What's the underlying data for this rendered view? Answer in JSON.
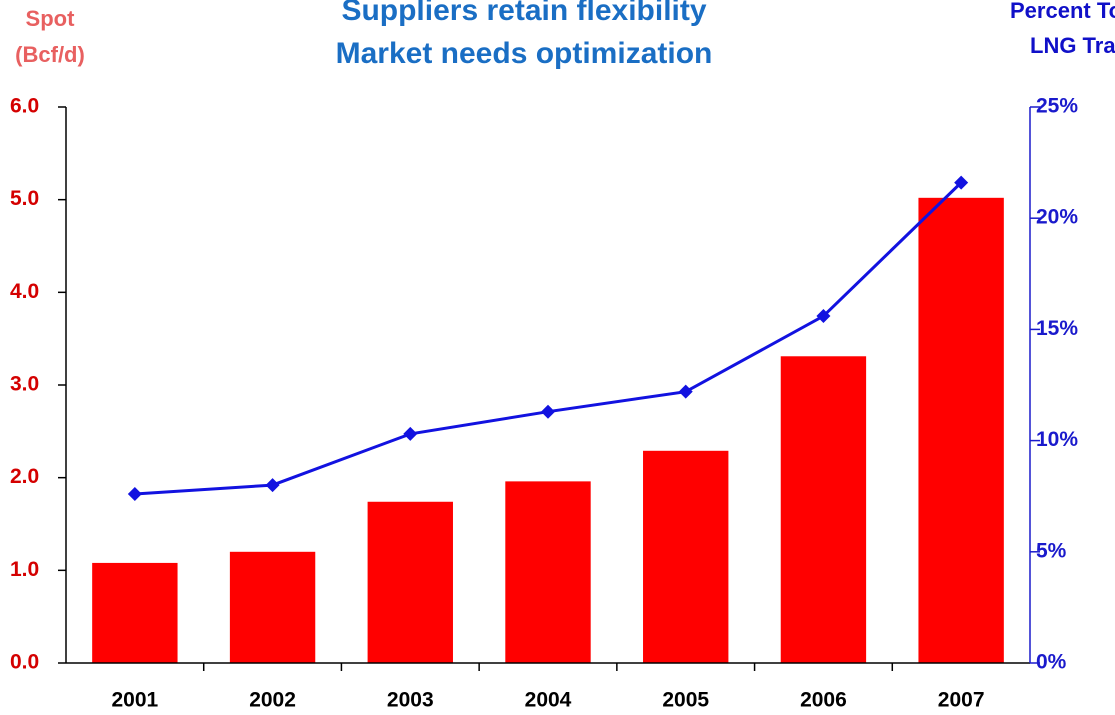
{
  "chart_data": {
    "type": "bar-line",
    "title": [
      "Suppliers retain flexibility",
      "Market needs optimization"
    ],
    "ylabel": [
      "Spot",
      "(Bcf/d)"
    ],
    "y2label": [
      "Percent Tot",
      "LNG Trade"
    ],
    "categories": [
      "2001",
      "2002",
      "2003",
      "2004",
      "2005",
      "2006",
      "2007"
    ],
    "series": [
      {
        "type": "bar",
        "color": "#ff0000",
        "values": [
          1.08,
          1.2,
          1.74,
          1.96,
          2.29,
          3.31,
          5.02
        ]
      },
      {
        "type": "line",
        "color": "#1212e0",
        "axis": "y2",
        "values": [
          7.6,
          8.0,
          10.3,
          11.3,
          12.2,
          15.6,
          21.6
        ]
      }
    ],
    "ylim": [
      0,
      6
    ],
    "yticks": [
      {
        "value": 0,
        "label": "0.0"
      },
      {
        "value": 1,
        "label": "1.0"
      },
      {
        "value": 2,
        "label": "2.0"
      },
      {
        "value": 3,
        "label": "3.0"
      },
      {
        "value": 4,
        "label": "4.0"
      },
      {
        "value": 5,
        "label": "5.0"
      },
      {
        "value": 6,
        "label": "6.0"
      }
    ],
    "y2lim": [
      0,
      25
    ],
    "y2ticks": [
      {
        "value": 0,
        "label": "0%"
      },
      {
        "value": 5,
        "label": "5%"
      },
      {
        "value": 10,
        "label": "10%"
      },
      {
        "value": 15,
        "label": "15%"
      },
      {
        "value": 20,
        "label": "20%"
      },
      {
        "value": 25,
        "label": "25%"
      }
    ]
  }
}
